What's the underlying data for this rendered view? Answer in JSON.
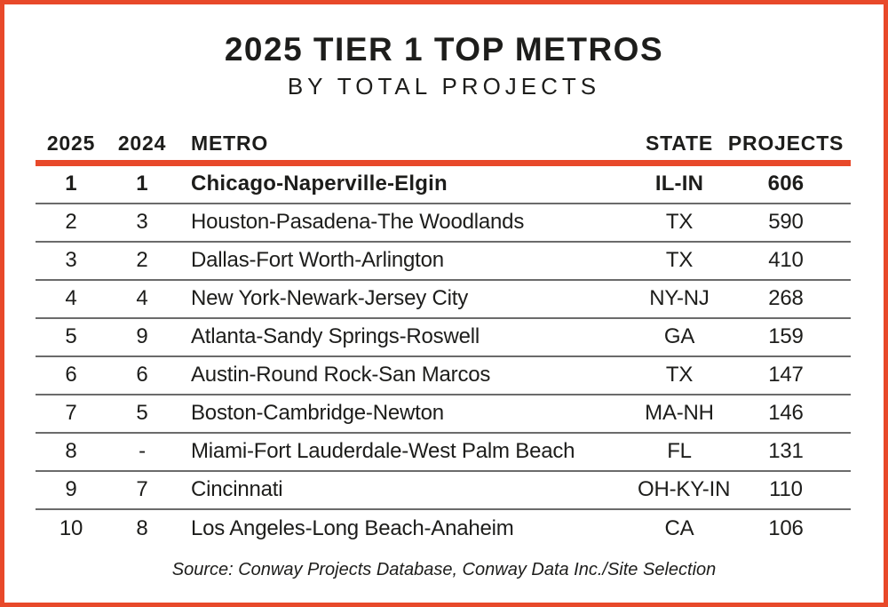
{
  "chart_data": {
    "type": "table",
    "title": "2025 TIER 1 TOP METROS",
    "subtitle": "BY TOTAL PROJECTS",
    "columns": [
      "2025",
      "2024",
      "METRO",
      "STATE",
      "PROJECTS"
    ],
    "rows": [
      [
        "1",
        "1",
        "Chicago-Naperville-Elgin",
        "IL-IN",
        "606"
      ],
      [
        "2",
        "3",
        "Houston-Pasadena-The Woodlands",
        "TX",
        "590"
      ],
      [
        "3",
        "2",
        "Dallas-Fort Worth-Arlington",
        "TX",
        "410"
      ],
      [
        "4",
        "4",
        "New York-Newark-Jersey City",
        "NY-NJ",
        "268"
      ],
      [
        "5",
        "9",
        "Atlanta-Sandy Springs-Roswell",
        "GA",
        "159"
      ],
      [
        "6",
        "6",
        "Austin-Round Rock-San Marcos",
        "TX",
        "147"
      ],
      [
        "7",
        "5",
        "Boston-Cambridge-Newton",
        "MA-NH",
        "146"
      ],
      [
        "8",
        "-",
        "Miami-Fort Lauderdale-West Palm Beach",
        "FL",
        "131"
      ],
      [
        "9",
        "7",
        "Cincinnati",
        "OH-KY-IN",
        "110"
      ],
      [
        "10",
        "8",
        "Los Angeles-Long Beach-Anaheim",
        "CA",
        "106"
      ]
    ],
    "highlighted_row_index": 0,
    "source": "Source: Conway Projects Database, Conway Data Inc./Site Selection",
    "layout_hints": {
      "grid": "horizontal separators only",
      "header_divider": "thick orange rule",
      "first_row_style": "bold"
    }
  },
  "colors": {
    "accent_orange": "#e8492a",
    "separator_gray": "#6b6b6b",
    "text_black": "#1d1d1b",
    "background": "#ffffff"
  }
}
